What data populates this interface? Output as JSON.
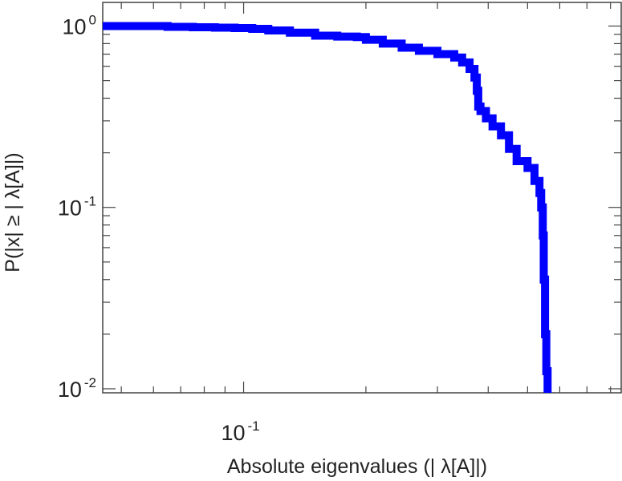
{
  "chart_data": {
    "type": "line",
    "title": "",
    "xlabel": "Absolute eigenvalues (|      λ[A]|)",
    "ylabel": "P(|x|  ≥ | λ[A]|)",
    "x_scale": "log",
    "y_scale": "log",
    "xlim": [
      0.045,
      0.85
    ],
    "ylim": [
      0.0095,
      1.35
    ],
    "grid": false,
    "legend": "none",
    "x_ticks": [
      {
        "value": 0.1,
        "base": "10",
        "exp": "-1"
      }
    ],
    "y_ticks": [
      {
        "value": 1,
        "base": "10",
        "exp": "0"
      },
      {
        "value": 0.1,
        "base": "10",
        "exp": "-1"
      },
      {
        "value": 0.01,
        "base": "10",
        "exp": "-2"
      }
    ],
    "series": [
      {
        "color": "#0000ff",
        "step": true,
        "x": [
          0.045,
          0.055,
          0.065,
          0.075,
          0.085,
          0.095,
          0.105,
          0.115,
          0.13,
          0.15,
          0.17,
          0.19,
          0.2,
          0.22,
          0.245,
          0.27,
          0.3,
          0.33,
          0.345,
          0.36,
          0.37,
          0.375,
          0.378,
          0.383,
          0.395,
          0.41,
          0.43,
          0.45,
          0.47,
          0.5,
          0.52,
          0.535,
          0.54,
          0.545,
          0.548,
          0.552,
          0.556,
          0.56
        ],
        "y": [
          1.0,
          1.0,
          0.99,
          0.985,
          0.98,
          0.975,
          0.965,
          0.945,
          0.92,
          0.885,
          0.875,
          0.87,
          0.84,
          0.8,
          0.76,
          0.73,
          0.7,
          0.67,
          0.63,
          0.58,
          0.52,
          0.44,
          0.36,
          0.34,
          0.31,
          0.28,
          0.25,
          0.21,
          0.18,
          0.165,
          0.14,
          0.12,
          0.1,
          0.07,
          0.04,
          0.02,
          0.0125,
          0.0095
        ]
      }
    ]
  }
}
